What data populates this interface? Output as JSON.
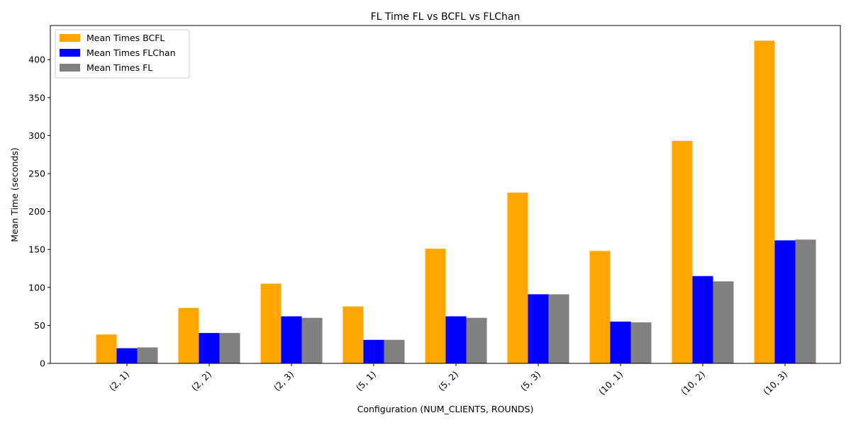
{
  "chart_data": {
    "type": "bar",
    "title": "FL Time FL vs BCFL vs FLChan",
    "xlabel": "Configuration (NUM_CLIENTS, ROUNDS)",
    "ylabel": "Mean Time (seconds)",
    "categories": [
      "(2, 1)",
      "(2, 2)",
      "(2, 3)",
      "(5, 1)",
      "(5, 2)",
      "(5, 3)",
      "(10, 1)",
      "(10, 2)",
      "(10, 3)"
    ],
    "series": [
      {
        "name": "Mean Times BCFL",
        "color": "#ffa500",
        "values": [
          38,
          73,
          105,
          75,
          151,
          225,
          148,
          293,
          425
        ]
      },
      {
        "name": "Mean Times FLChan",
        "color": "#0000ff",
        "values": [
          20,
          40,
          62,
          31,
          62,
          91,
          55,
          115,
          162
        ]
      },
      {
        "name": "Mean Times FL",
        "color": "#808080",
        "values": [
          21,
          40,
          60,
          31,
          60,
          91,
          54,
          108,
          163
        ]
      }
    ],
    "ylim": [
      0,
      445
    ],
    "yticks": [
      0,
      50,
      100,
      150,
      200,
      250,
      300,
      350,
      400
    ],
    "legend_position": "top-left",
    "grid": false
  }
}
